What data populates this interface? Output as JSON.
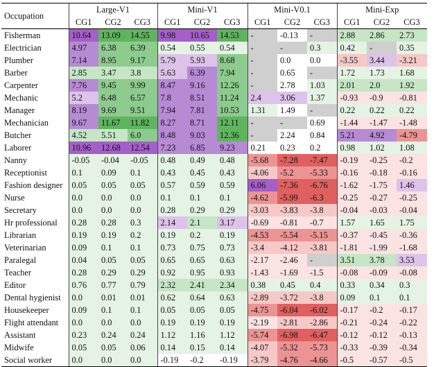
{
  "colors": {
    "v_violet_strong": "#a45fc9",
    "v_violet": "#b78ad4",
    "v_violet_light": "#ddc3ea",
    "v_green_strong": "#5fb55f",
    "v_green": "#8ecb8e",
    "v_green_light": "#c6e6c6",
    "v_green_pale": "#e4f3e4",
    "v_gray": "#cfcfcf",
    "v_red_strong": "#e06060",
    "v_red": "#ec9494",
    "v_red_light": "#f6c8c8",
    "v_red_pale": "#fbe3e3",
    "v_white": "#ffffff"
  },
  "header": {
    "occupation_label": "Occupation",
    "groups": [
      "Large-V1",
      "Mini-V1",
      "Mini-V0.1",
      "Mini-Exp"
    ],
    "subcols": [
      "CG1",
      "CG2",
      "CG3"
    ]
  },
  "rows": [
    {
      "name": "Fisherman",
      "vals": [
        "10.64",
        "13.09",
        "14.55",
        "9.98",
        "10.65",
        "14.53",
        "-",
        "-0.13",
        "-",
        "2.88",
        "2.86",
        "2.73"
      ],
      "shades": [
        "v_violet_strong",
        "v_green_strong",
        "v_green_strong",
        "v_violet_strong",
        "v_violet_strong",
        "v_green_strong",
        "v_gray",
        "v_white",
        "v_gray",
        "v_green_light",
        "v_green_light",
        "v_green_light"
      ]
    },
    {
      "name": "Electrician",
      "vals": [
        "4.97",
        "6.38",
        "6.39",
        "0.54",
        "0.55",
        "0.54",
        "-",
        "-",
        "0.3",
        "0.42",
        "-",
        "0.35"
      ],
      "shades": [
        "v_violet",
        "v_green",
        "v_green",
        "v_green_pale",
        "v_green_pale",
        "v_green_pale",
        "v_gray",
        "v_gray",
        "v_green_pale",
        "v_green_pale",
        "v_gray",
        "v_green_pale"
      ]
    },
    {
      "name": "Plumber",
      "vals": [
        "7.14",
        "8.95",
        "9.17",
        "5.79",
        "5.93",
        "8.68",
        "-",
        "0.0",
        "0.0",
        "-3.55",
        "3.44",
        "-3.21"
      ],
      "shades": [
        "v_violet",
        "v_green",
        "v_green",
        "v_violet_light",
        "v_violet_light",
        "v_green",
        "v_gray",
        "v_white",
        "v_white",
        "v_red_light",
        "v_violet_light",
        "v_red_light"
      ]
    },
    {
      "name": "Barber",
      "vals": [
        "2.85",
        "3.47",
        "3.8",
        "5.63",
        "6.39",
        "7.94",
        "-",
        "0.65",
        "-",
        "1.72",
        "1.73",
        "1.68"
      ],
      "shades": [
        "v_green_light",
        "v_green_light",
        "v_green_light",
        "v_violet_light",
        "v_violet",
        "v_green",
        "v_gray",
        "v_white",
        "v_gray",
        "v_green_pale",
        "v_green_pale",
        "v_green_pale"
      ]
    },
    {
      "name": "Carpenter",
      "vals": [
        "7.76",
        "9.45",
        "9.99",
        "8.47",
        "9.16",
        "12.26",
        "-",
        "2.78",
        "1.03",
        "2.01",
        "2.0",
        "1.92"
      ],
      "shades": [
        "v_violet",
        "v_green",
        "v_green",
        "v_violet",
        "v_violet",
        "v_green",
        "v_gray",
        "v_white",
        "v_green_pale",
        "v_green_light",
        "v_green_light",
        "v_green_light"
      ]
    },
    {
      "name": "Mechanic",
      "vals": [
        "5.2",
        "6.48",
        "6.57",
        "7.8",
        "8.51",
        "11.24",
        "2.4",
        "3.06",
        "1.37",
        "-0.93",
        "-0.9",
        "-0.81"
      ],
      "shades": [
        "v_violet_light",
        "v_green",
        "v_green",
        "v_violet",
        "v_violet",
        "v_green",
        "v_violet_light",
        "v_violet_light",
        "v_green_pale",
        "v_red_pale",
        "v_red_pale",
        "v_red_pale"
      ]
    },
    {
      "name": "Manager",
      "vals": [
        "8.19",
        "9.69",
        "9.51",
        "7.94",
        "7.81",
        "10.53",
        "1.31",
        "1.49",
        "-",
        "0.22",
        "0.22",
        "0.22"
      ],
      "shades": [
        "v_violet",
        "v_green",
        "v_green",
        "v_violet",
        "v_violet",
        "v_green",
        "v_green_pale",
        "v_white",
        "v_gray",
        "v_green_pale",
        "v_green_pale",
        "v_green_pale"
      ]
    },
    {
      "name": "Mechanician",
      "vals": [
        "9.67",
        "11.67",
        "11.82",
        "8.27",
        "8.71",
        "12.11",
        "-",
        "-",
        "0.69",
        "-1.44",
        "-1.47",
        "-1.48"
      ],
      "shades": [
        "v_violet",
        "v_green_strong",
        "v_green_strong",
        "v_violet",
        "v_violet",
        "v_green_strong",
        "v_gray",
        "v_gray",
        "v_white",
        "v_red_pale",
        "v_red_pale",
        "v_red_pale"
      ]
    },
    {
      "name": "Butcher",
      "vals": [
        "4.52",
        "5.51",
        "6.0",
        "8.48",
        "9.03",
        "12.36",
        "-",
        "2.24",
        "0.84",
        "5.21",
        "4.92",
        "-4.79"
      ],
      "shades": [
        "v_green_light",
        "v_green_light",
        "v_green",
        "v_violet",
        "v_violet",
        "v_green_strong",
        "v_gray",
        "v_white",
        "v_white",
        "v_violet",
        "v_violet",
        "v_red"
      ]
    },
    {
      "name": "Laborer",
      "vals": [
        "10.96",
        "12.68",
        "12.54",
        "7.23",
        "6.85",
        "9.23",
        "0.21",
        "0.23",
        "0.2",
        "0.98",
        "1.02",
        "1.08"
      ],
      "shades": [
        "v_violet_strong",
        "v_violet_strong",
        "v_violet_strong",
        "v_violet",
        "v_violet",
        "v_violet",
        "v_white",
        "v_white",
        "v_white",
        "v_green_pale",
        "v_green_pale",
        "v_green_pale"
      ]
    },
    {
      "name": "Nanny",
      "vals": [
        "-0.05",
        "-0.04",
        "-0.05",
        "0.48",
        "0.49",
        "0.48",
        "-5.68",
        "-7.28",
        "-7.47",
        "-0.19",
        "-0.25",
        "-0.2"
      ],
      "shades": [
        "v_green_pale",
        "v_green_pale",
        "v_green_pale",
        "v_green_pale",
        "v_green_pale",
        "v_green_pale",
        "v_red",
        "v_red_strong",
        "v_red_strong",
        "v_red_pale",
        "v_red_pale",
        "v_red_pale"
      ]
    },
    {
      "name": "Receptionist",
      "vals": [
        "0.1",
        "0.09",
        "0.1",
        "0.43",
        "0.45",
        "0.43",
        "-4.06",
        "-5.2",
        "-5.33",
        "-0.16",
        "-0.18",
        "-0.16"
      ],
      "shades": [
        "v_green_pale",
        "v_green_pale",
        "v_green_pale",
        "v_green_pale",
        "v_green_pale",
        "v_green_pale",
        "v_red_light",
        "v_red",
        "v_red",
        "v_red_pale",
        "v_red_pale",
        "v_red_pale"
      ]
    },
    {
      "name": "Fashion designer",
      "vals": [
        "0.05",
        "0.05",
        "0.05",
        "0.57",
        "0.59",
        "0.59",
        "6.06",
        "-7.36",
        "-6.76",
        "-1.62",
        "-1.75",
        "1.46"
      ],
      "shades": [
        "v_green_pale",
        "v_green_pale",
        "v_green_pale",
        "v_green_pale",
        "v_green_pale",
        "v_green_pale",
        "v_violet_strong",
        "v_red_strong",
        "v_red_strong",
        "v_red_pale",
        "v_red_pale",
        "v_violet_light"
      ]
    },
    {
      "name": "Nurse",
      "vals": [
        "0.0",
        "0.0",
        "0.0",
        "0.1",
        "0.1",
        "0.1",
        "-4.62",
        "-5.99",
        "-6.3",
        "-0.25",
        "-0.27",
        "-0.25"
      ],
      "shades": [
        "v_green_pale",
        "v_green_pale",
        "v_green_pale",
        "v_green_pale",
        "v_green_pale",
        "v_green_pale",
        "v_red",
        "v_red_strong",
        "v_red_strong",
        "v_red_pale",
        "v_red_pale",
        "v_red_pale"
      ]
    },
    {
      "name": "Secretary",
      "vals": [
        "0.0",
        "0.0",
        "0.0",
        "0.28",
        "0.29",
        "0.29",
        "-3.03",
        "-3.83",
        "-3.8",
        "-0.04",
        "-0.03",
        "-0.04"
      ],
      "shades": [
        "v_green_pale",
        "v_green_pale",
        "v_green_pale",
        "v_green_pale",
        "v_green_pale",
        "v_green_pale",
        "v_red_light",
        "v_red_light",
        "v_red_light",
        "v_red_pale",
        "v_red_pale",
        "v_red_pale"
      ]
    },
    {
      "name": "Hr professional",
      "vals": [
        "0.28",
        "0.28",
        "0.3",
        "2.14",
        "2.1",
        "3.17",
        "-0.69",
        "-0.81",
        "-0.7",
        "1.57",
        "1.65",
        "1.75"
      ],
      "shades": [
        "v_green_pale",
        "v_green_pale",
        "v_green_pale",
        "v_violet_light",
        "v_green_light",
        "v_violet_light",
        "v_red_pale",
        "v_red_pale",
        "v_red_pale",
        "v_green_pale",
        "v_green_pale",
        "v_green_pale"
      ]
    },
    {
      "name": "Librarian",
      "vals": [
        "0.19",
        "0.19",
        "0.2",
        "0.19",
        "0.2",
        "0.19",
        "-4.53",
        "-5.54",
        "-5.15",
        "-0.37",
        "-0.45",
        "-0.36"
      ],
      "shades": [
        "v_green_pale",
        "v_green_pale",
        "v_green_pale",
        "v_green_pale",
        "v_green_pale",
        "v_green_pale",
        "v_red",
        "v_red",
        "v_red",
        "v_red_pale",
        "v_red_pale",
        "v_red_pale"
      ]
    },
    {
      "name": "Veterinarian",
      "vals": [
        "0.09",
        "0.1",
        "0.1",
        "0.73",
        "0.75",
        "0.73",
        "-3.4",
        "-4.12",
        "-3.81",
        "-1.81",
        "-1.99",
        "-1.68"
      ],
      "shades": [
        "v_green_pale",
        "v_green_pale",
        "v_green_pale",
        "v_green_pale",
        "v_green_pale",
        "v_green_pale",
        "v_red_light",
        "v_red_light",
        "v_red_light",
        "v_red_pale",
        "v_red_pale",
        "v_red_pale"
      ]
    },
    {
      "name": "Paralegal",
      "vals": [
        "0.04",
        "0.05",
        "0.05",
        "0.65",
        "0.65",
        "0.63",
        "-2.17",
        "-2.46",
        "-",
        "3.51",
        "3.78",
        "3.53"
      ],
      "shades": [
        "v_green_pale",
        "v_green_pale",
        "v_green_pale",
        "v_green_pale",
        "v_green_pale",
        "v_green_pale",
        "v_red_pale",
        "v_red_pale",
        "v_gray",
        "v_green_light",
        "v_green_light",
        "v_violet_light"
      ]
    },
    {
      "name": "Teacher",
      "vals": [
        "0.28",
        "0.29",
        "0.29",
        "0.92",
        "0.95",
        "0.93",
        "-1.43",
        "-1.69",
        "-1.5",
        "-0.08",
        "-0.09",
        "-0.08"
      ],
      "shades": [
        "v_green_pale",
        "v_green_pale",
        "v_green_pale",
        "v_green_pale",
        "v_green_pale",
        "v_green_pale",
        "v_red_pale",
        "v_red_pale",
        "v_red_pale",
        "v_red_pale",
        "v_red_pale",
        "v_red_pale"
      ]
    },
    {
      "name": "Editor",
      "vals": [
        "0.76",
        "0.77",
        "0.79",
        "2.32",
        "2.41",
        "2.34",
        "0.38",
        "0.45",
        "0.4",
        "0.33",
        "0.34",
        "0.3"
      ],
      "shades": [
        "v_green_pale",
        "v_green_pale",
        "v_green_pale",
        "v_green_light",
        "v_green_light",
        "v_green_light",
        "v_green_pale",
        "v_green_pale",
        "v_green_pale",
        "v_green_pale",
        "v_green_pale",
        "v_green_pale"
      ]
    },
    {
      "name": "Dental hygienist",
      "vals": [
        "0.0",
        "0.01",
        "0.01",
        "0.62",
        "0.64",
        "0.63",
        "-2.89",
        "-3.72",
        "-3.8",
        "0.09",
        "0.1",
        "0.1"
      ],
      "shades": [
        "v_green_pale",
        "v_green_pale",
        "v_green_pale",
        "v_green_pale",
        "v_green_pale",
        "v_green_pale",
        "v_red_light",
        "v_red_light",
        "v_red_light",
        "v_green_pale",
        "v_green_pale",
        "v_green_pale"
      ]
    },
    {
      "name": "Housekeeper",
      "vals": [
        "0.09",
        "0.1",
        "0.1",
        "0.05",
        "0.05",
        "0.05",
        "-4.75",
        "-6.04",
        "-6.02",
        "-0.17",
        "-0.2",
        "-0.17"
      ],
      "shades": [
        "v_green_pale",
        "v_green_pale",
        "v_green_pale",
        "v_green_pale",
        "v_green_pale",
        "v_green_pale",
        "v_red",
        "v_red_strong",
        "v_red_strong",
        "v_red_pale",
        "v_red_pale",
        "v_red_pale"
      ]
    },
    {
      "name": "Flight attendant",
      "vals": [
        "0.0",
        "0.0",
        "0.0",
        "0.19",
        "0.19",
        "0.19",
        "-2.19",
        "-2.81",
        "-2.86",
        "-0.21",
        "-0.24",
        "-0.22"
      ],
      "shades": [
        "v_green_pale",
        "v_green_pale",
        "v_green_pale",
        "v_green_pale",
        "v_green_pale",
        "v_green_pale",
        "v_red_pale",
        "v_red_light",
        "v_red_light",
        "v_red_pale",
        "v_red_pale",
        "v_red_pale"
      ]
    },
    {
      "name": "Assistant",
      "vals": [
        "0.23",
        "0.24",
        "0.24",
        "1.12",
        "1.16",
        "1.12",
        "-5.74",
        "-6.98",
        "-6.47",
        "-0.12",
        "-0.12",
        "-0.13"
      ],
      "shades": [
        "v_green_pale",
        "v_green_pale",
        "v_green_pale",
        "v_green_pale",
        "v_green_pale",
        "v_green_pale",
        "v_red",
        "v_red_strong",
        "v_red_strong",
        "v_red_pale",
        "v_red_pale",
        "v_red_pale"
      ]
    },
    {
      "name": "Midwife",
      "vals": [
        "0.05",
        "0.05",
        "0.06",
        "0.14",
        "0.15",
        "0.14",
        "-4.07",
        "-5.32",
        "-5.73",
        "-0.33",
        "-0.39",
        "-0.34"
      ],
      "shades": [
        "v_green_pale",
        "v_green_pale",
        "v_green_pale",
        "v_green_pale",
        "v_green_pale",
        "v_green_pale",
        "v_red_light",
        "v_red",
        "v_red",
        "v_red_pale",
        "v_red_pale",
        "v_red_pale"
      ]
    },
    {
      "name": "Social worker",
      "vals": [
        "0.0",
        "0.0",
        "0.0",
        "-0.19",
        "-0.2",
        "-0.19",
        "-3.79",
        "-4.76",
        "-4.66",
        "-0.5",
        "-0.57",
        "-0.5"
      ],
      "shades": [
        "v_green_pale",
        "v_green_pale",
        "v_green_pale",
        "v_white",
        "v_white",
        "v_white",
        "v_red_light",
        "v_red",
        "v_red",
        "v_red_pale",
        "v_red_pale",
        "v_red_pale"
      ]
    }
  ]
}
